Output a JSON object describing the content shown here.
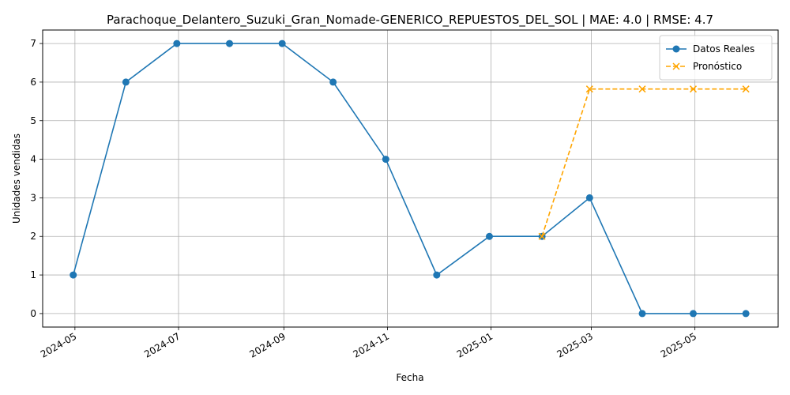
{
  "chart_data": {
    "type": "line",
    "title": "Parachoque_Delantero_Suzuki_Gran_Nomade-GENERICO_REPUESTOS_DEL_SOL | MAE: 4.0 | RMSE: 4.7",
    "xlabel": "Fecha",
    "ylabel": "Unidades vendidas",
    "x_ticks": [
      "2024-05",
      "2024-07",
      "2024-09",
      "2024-11",
      "2025-01",
      "2025-03",
      "2025-05"
    ],
    "y_ticks": [
      0,
      1,
      2,
      3,
      4,
      5,
      6,
      7
    ],
    "ylim": [
      -0.35,
      7.35
    ],
    "xlim": [
      "2024-04-12",
      "2025-06-19"
    ],
    "grid": true,
    "legend_position": "top-right",
    "series": [
      {
        "name": "Datos Reales",
        "color": "#1f77b4",
        "style": "solid",
        "marker": "circle",
        "points": [
          {
            "x": "2024-04-30",
            "y": 1
          },
          {
            "x": "2024-05-31",
            "y": 6
          },
          {
            "x": "2024-06-30",
            "y": 7
          },
          {
            "x": "2024-07-31",
            "y": 7
          },
          {
            "x": "2024-08-31",
            "y": 7
          },
          {
            "x": "2024-09-30",
            "y": 6
          },
          {
            "x": "2024-10-31",
            "y": 4
          },
          {
            "x": "2024-11-30",
            "y": 1
          },
          {
            "x": "2024-12-31",
            "y": 2
          },
          {
            "x": "2025-01-31",
            "y": 2
          },
          {
            "x": "2025-02-28",
            "y": 3
          },
          {
            "x": "2025-03-31",
            "y": 0
          },
          {
            "x": "2025-04-30",
            "y": 0
          },
          {
            "x": "2025-05-31",
            "y": 0
          }
        ]
      },
      {
        "name": "Pronóstico",
        "color": "#ffa500",
        "style": "dashed",
        "marker": "x",
        "points": [
          {
            "x": "2025-01-31",
            "y": 2
          },
          {
            "x": "2025-02-28",
            "y": 5.82
          },
          {
            "x": "2025-03-31",
            "y": 5.82
          },
          {
            "x": "2025-04-30",
            "y": 5.82
          },
          {
            "x": "2025-05-31",
            "y": 5.82
          }
        ]
      }
    ]
  }
}
